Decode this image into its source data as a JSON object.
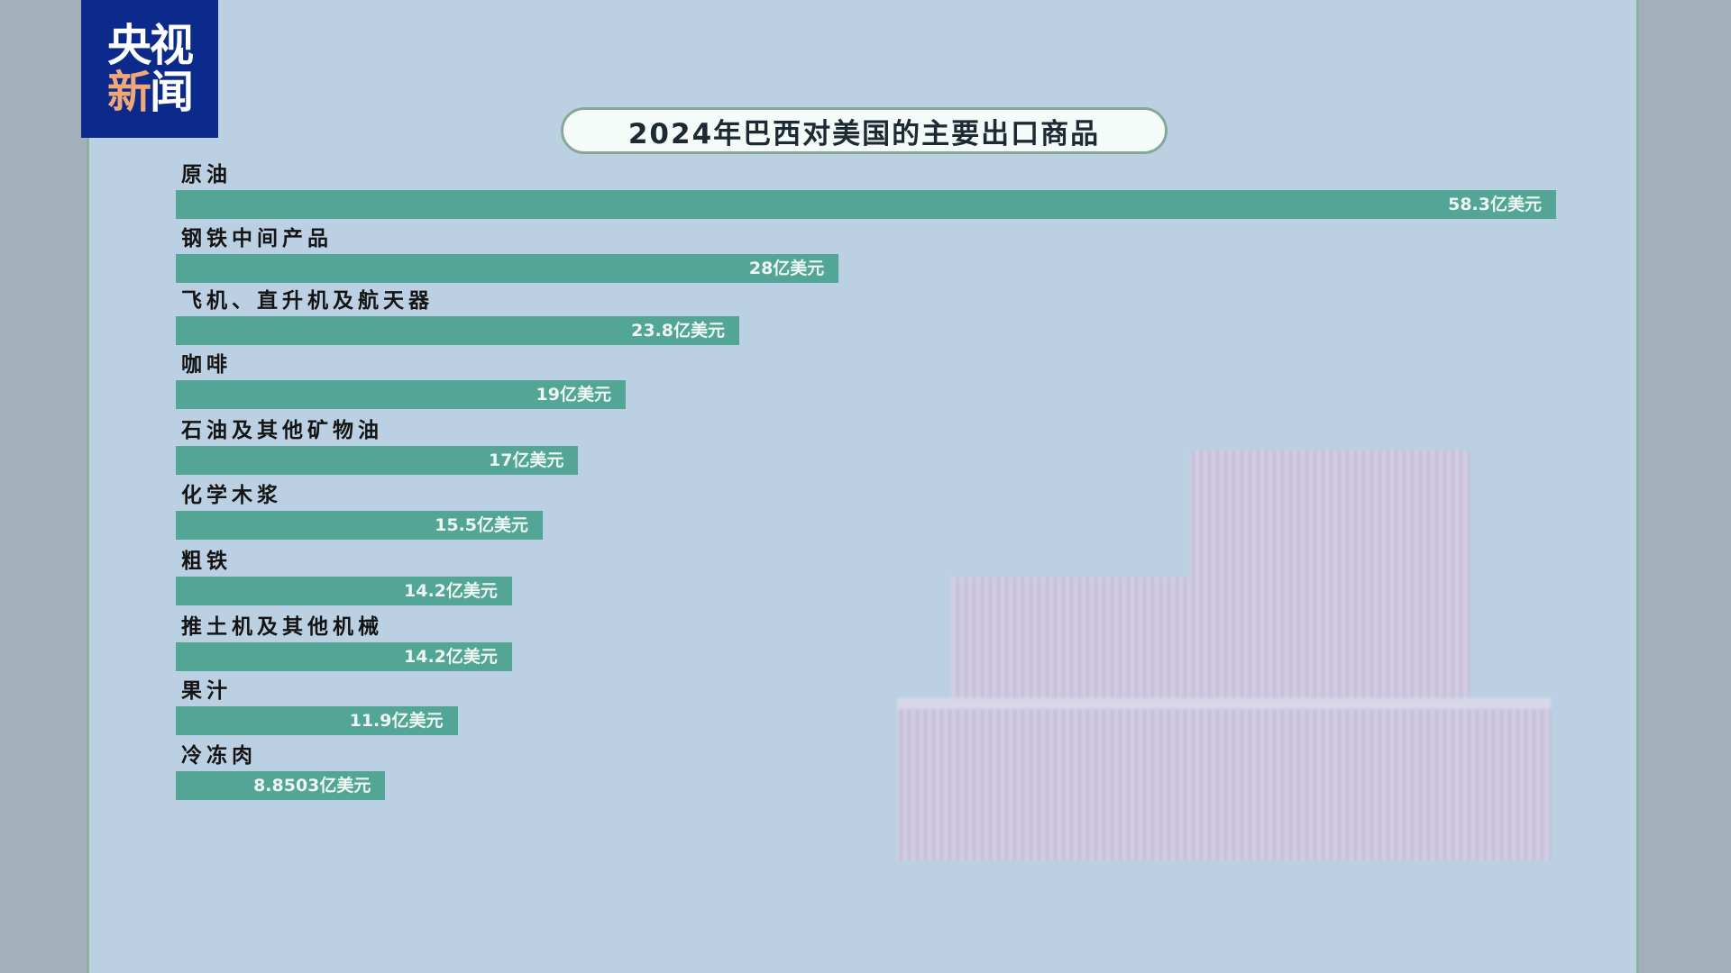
{
  "logo": {
    "line1": "央视",
    "line2a": "新",
    "line2b": "闻"
  },
  "colors": {
    "bar": "#53a695",
    "background": "#bbd0e3",
    "logo": "#0b2a8c"
  },
  "chart_data": {
    "type": "bar",
    "orientation": "horizontal",
    "title": "2024年巴西对美国的主要出口商品",
    "unit": "亿美元",
    "categories": [
      "原油",
      "钢铁中间产品",
      "飞机、直升机及航天器",
      "咖啡",
      "石油及其他矿物油",
      "化学木浆",
      "粗铁",
      "推土机及其他机械",
      "果汁",
      "冷冻肉"
    ],
    "values": [
      58.3,
      28,
      23.8,
      19,
      17,
      15.5,
      14.2,
      14.2,
      11.9,
      8.8503
    ],
    "value_labels": [
      "58.3亿美元",
      "28亿美元",
      "23.8亿美元",
      "19亿美元",
      "17亿美元",
      "15.5亿美元",
      "14.2亿美元",
      "14.2亿美元",
      "11.9亿美元",
      "8.8503亿美元"
    ],
    "grid": false
  }
}
